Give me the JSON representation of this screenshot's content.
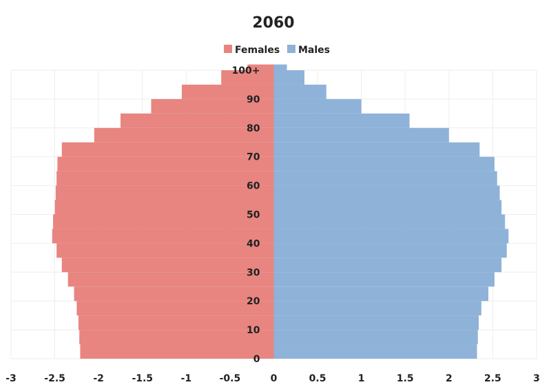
{
  "chart_data": {
    "type": "bar",
    "orientation": "horizontal",
    "title": "2060",
    "legend": {
      "placement": "top-center"
    },
    "series": [
      {
        "name": "Females",
        "color": "#e88580",
        "values": [
          [
            0,
            -2.21
          ],
          [
            5,
            -2.22
          ],
          [
            10,
            -2.23
          ],
          [
            15,
            -2.25
          ],
          [
            20,
            -2.28
          ],
          [
            25,
            -2.35
          ],
          [
            30,
            -2.42
          ],
          [
            35,
            -2.48
          ],
          [
            40,
            -2.53
          ],
          [
            45,
            -2.52
          ],
          [
            50,
            -2.5
          ],
          [
            55,
            -2.49
          ],
          [
            60,
            -2.48
          ],
          [
            65,
            -2.47
          ],
          [
            70,
            -2.42
          ],
          [
            75,
            -2.05
          ],
          [
            80,
            -1.75
          ],
          [
            85,
            -1.4
          ],
          [
            90,
            -1.05
          ],
          [
            95,
            -0.6
          ],
          [
            100,
            -0.3
          ]
        ]
      },
      {
        "name": "Males",
        "color": "#8fb2d8",
        "values": [
          [
            0,
            2.32
          ],
          [
            5,
            2.33
          ],
          [
            10,
            2.34
          ],
          [
            15,
            2.37
          ],
          [
            20,
            2.45
          ],
          [
            25,
            2.52
          ],
          [
            30,
            2.6
          ],
          [
            35,
            2.66
          ],
          [
            40,
            2.68
          ],
          [
            45,
            2.64
          ],
          [
            50,
            2.6
          ],
          [
            55,
            2.58
          ],
          [
            60,
            2.55
          ],
          [
            65,
            2.52
          ],
          [
            70,
            2.35
          ],
          [
            75,
            2.0
          ],
          [
            80,
            1.55
          ],
          [
            85,
            1.0
          ],
          [
            90,
            0.6
          ],
          [
            95,
            0.35
          ],
          [
            100,
            0.15
          ]
        ]
      }
    ],
    "x_ticks": [
      "-3",
      "-2.5",
      "-2",
      "-1.5",
      "-1",
      "-0.5",
      "0",
      "0.5",
      "1",
      "1.5",
      "2",
      "2.5",
      "3"
    ],
    "x_tick_values": [
      -3,
      -2.5,
      -2,
      -1.5,
      -1,
      -0.5,
      0,
      0.5,
      1,
      1.5,
      2,
      2.5,
      3
    ],
    "y_ticks": [
      "0",
      "10",
      "20",
      "30",
      "40",
      "50",
      "60",
      "70",
      "80",
      "90",
      "100+"
    ],
    "y_tick_values": [
      0,
      10,
      20,
      30,
      40,
      50,
      60,
      70,
      80,
      90,
      100
    ],
    "xlim": [
      -3,
      3
    ],
    "ylim": [
      0,
      100
    ],
    "grid": true
  }
}
